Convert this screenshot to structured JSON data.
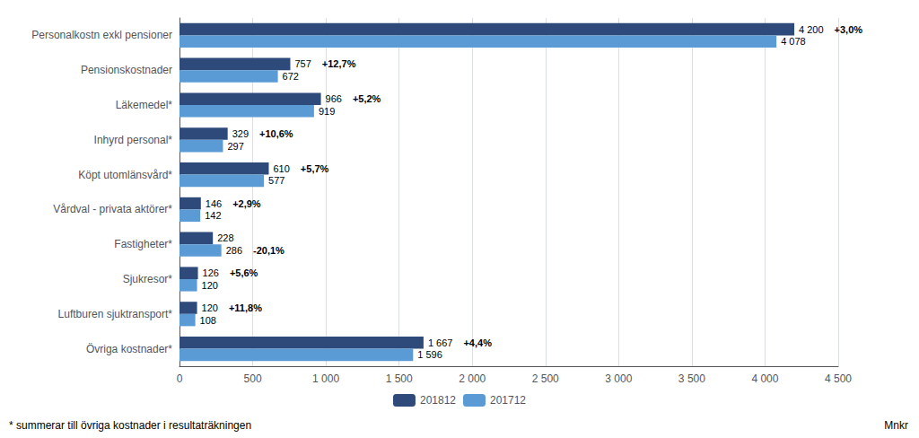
{
  "chart_data": {
    "type": "bar",
    "orientation": "horizontal",
    "categories": [
      "Personalkostn exkl pensioner",
      "Pensionskostnader",
      "Läkemedel*",
      "Inhyrd personal*",
      "Köpt utomlänsvård*",
      "Vårdval - privata aktörer*",
      "Fastigheter*",
      "Sjukresor*",
      "Luftburen sjuktransport*",
      "Övriga kostnader*"
    ],
    "series": [
      {
        "name": "201812",
        "color": "#2E4A7A",
        "values": [
          4200,
          757,
          966,
          329,
          610,
          146,
          228,
          126,
          120,
          1667
        ],
        "value_labels": [
          "4 200",
          "757",
          "966",
          "329",
          "610",
          "146",
          "228",
          "126",
          "120",
          "1 667"
        ]
      },
      {
        "name": "201712",
        "color": "#5B9BD5",
        "values": [
          4078,
          672,
          919,
          297,
          577,
          142,
          286,
          120,
          108,
          1596
        ],
        "value_labels": [
          "4 078",
          "672",
          "919",
          "297",
          "577",
          "142",
          "286",
          "120",
          "108",
          "1 596"
        ]
      }
    ],
    "annotations": [
      "+3,0%",
      "+12,7%",
      "+5,2%",
      "+10,6%",
      "+5,7%",
      "+2,9%",
      "-20,1%",
      "+5,6%",
      "+11,8%",
      "+4,4%"
    ],
    "xlabel": "Mnkr",
    "footnote": "* summerar till övriga kostnader i resultaträkningen",
    "xlim": [
      0,
      4500
    ],
    "xticks": [
      0,
      500,
      {
        "value": 1000,
        "label": "1 000"
      },
      {
        "value": 1500,
        "label": "1 500"
      },
      {
        "value": 2000,
        "label": "2 000"
      },
      {
        "value": 2500,
        "label": "2 500"
      },
      {
        "value": 3000,
        "label": "3 000"
      },
      {
        "value": 3500,
        "label": "3 500"
      },
      {
        "value": 4000,
        "label": "4 000"
      },
      {
        "value": 4500,
        "label": "4 500"
      }
    ],
    "data_labels": true,
    "grid": true,
    "legend": "bottom"
  }
}
